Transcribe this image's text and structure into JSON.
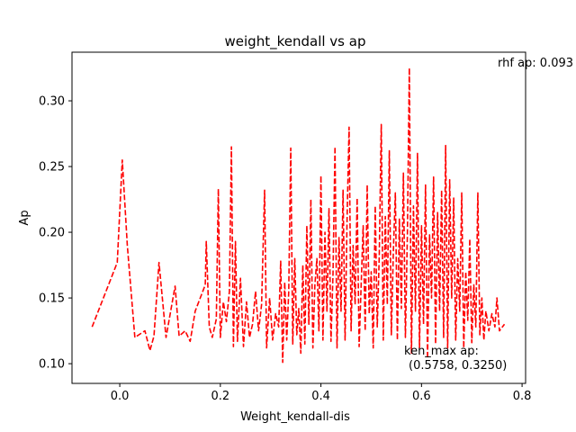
{
  "chart_data": {
    "type": "line",
    "title": "weight_kendall vs ap",
    "xlabel": "Weight_kendall-dis",
    "ylabel": "Ap",
    "xlim": [
      -0.095,
      0.807
    ],
    "ylim": [
      0.085,
      0.337
    ],
    "x_ticks": [
      0.0,
      0.2,
      0.4,
      0.6,
      0.8
    ],
    "x_tick_labels": [
      "0.0",
      "0.2",
      "0.4",
      "0.6",
      "0.8"
    ],
    "y_ticks": [
      0.1,
      0.15,
      0.2,
      0.25,
      0.3
    ],
    "y_tick_labels": [
      "0.10",
      "0.15",
      "0.20",
      "0.25",
      "0.30"
    ],
    "grid": false,
    "line_color": "#ff0000",
    "line_style": "dashed",
    "annotations": [
      {
        "text": "rhf ap: 0.093"
      },
      {
        "text": "ken_max ap:",
        "text2": "(0.5758, 0.3250)"
      }
    ],
    "series": [
      {
        "name": "",
        "points": [
          [
            -0.055,
            0.128
          ],
          [
            -0.005,
            0.177
          ],
          [
            0.005,
            0.255
          ],
          [
            0.015,
            0.19
          ],
          [
            0.03,
            0.12
          ],
          [
            0.05,
            0.125
          ],
          [
            0.06,
            0.11
          ],
          [
            0.068,
            0.121
          ],
          [
            0.078,
            0.177
          ],
          [
            0.092,
            0.12
          ],
          [
            0.11,
            0.159
          ],
          [
            0.118,
            0.121
          ],
          [
            0.13,
            0.125
          ],
          [
            0.14,
            0.117
          ],
          [
            0.15,
            0.14
          ],
          [
            0.17,
            0.16
          ],
          [
            0.172,
            0.193
          ],
          [
            0.178,
            0.128
          ],
          [
            0.184,
            0.12
          ],
          [
            0.192,
            0.134
          ],
          [
            0.196,
            0.233
          ],
          [
            0.2,
            0.12
          ],
          [
            0.206,
            0.147
          ],
          [
            0.212,
            0.132
          ],
          [
            0.218,
            0.155
          ],
          [
            0.222,
            0.265
          ],
          [
            0.226,
            0.113
          ],
          [
            0.23,
            0.193
          ],
          [
            0.234,
            0.117
          ],
          [
            0.24,
            0.165
          ],
          [
            0.246,
            0.113
          ],
          [
            0.252,
            0.147
          ],
          [
            0.258,
            0.12
          ],
          [
            0.264,
            0.13
          ],
          [
            0.27,
            0.155
          ],
          [
            0.276,
            0.125
          ],
          [
            0.282,
            0.145
          ],
          [
            0.288,
            0.232
          ],
          [
            0.292,
            0.112
          ],
          [
            0.298,
            0.15
          ],
          [
            0.304,
            0.118
          ],
          [
            0.31,
            0.138
          ],
          [
            0.316,
            0.128
          ],
          [
            0.32,
            0.178
          ],
          [
            0.324,
            0.101
          ],
          [
            0.328,
            0.162
          ],
          [
            0.332,
            0.118
          ],
          [
            0.336,
            0.155
          ],
          [
            0.34,
            0.264
          ],
          [
            0.344,
            0.115
          ],
          [
            0.348,
            0.18
          ],
          [
            0.352,
            0.122
          ],
          [
            0.356,
            0.142
          ],
          [
            0.36,
            0.108
          ],
          [
            0.364,
            0.175
          ],
          [
            0.368,
            0.115
          ],
          [
            0.372,
            0.205
          ],
          [
            0.376,
            0.13
          ],
          [
            0.38,
            0.225
          ],
          [
            0.384,
            0.112
          ],
          [
            0.388,
            0.16
          ],
          [
            0.392,
            0.18
          ],
          [
            0.396,
            0.125
          ],
          [
            0.4,
            0.243
          ],
          [
            0.404,
            0.118
          ],
          [
            0.408,
            0.2
          ],
          [
            0.412,
            0.14
          ],
          [
            0.416,
            0.218
          ],
          [
            0.42,
            0.117
          ],
          [
            0.424,
            0.168
          ],
          [
            0.428,
            0.265
          ],
          [
            0.432,
            0.112
          ],
          [
            0.436,
            0.196
          ],
          [
            0.44,
            0.14
          ],
          [
            0.444,
            0.232
          ],
          [
            0.448,
            0.118
          ],
          [
            0.452,
            0.21
          ],
          [
            0.456,
            0.28
          ],
          [
            0.46,
            0.125
          ],
          [
            0.464,
            0.19
          ],
          [
            0.468,
            0.145
          ],
          [
            0.472,
            0.226
          ],
          [
            0.476,
            0.113
          ],
          [
            0.48,
            0.16
          ],
          [
            0.484,
            0.205
          ],
          [
            0.488,
            0.125
          ],
          [
            0.492,
            0.236
          ],
          [
            0.496,
            0.138
          ],
          [
            0.5,
            0.17
          ],
          [
            0.504,
            0.112
          ],
          [
            0.508,
            0.22
          ],
          [
            0.512,
            0.128
          ],
          [
            0.516,
            0.182
          ],
          [
            0.52,
            0.282
          ],
          [
            0.524,
            0.118
          ],
          [
            0.528,
            0.212
          ],
          [
            0.532,
            0.145
          ],
          [
            0.536,
            0.262
          ],
          [
            0.54,
            0.122
          ],
          [
            0.544,
            0.185
          ],
          [
            0.548,
            0.23
          ],
          [
            0.552,
            0.118
          ],
          [
            0.556,
            0.21
          ],
          [
            0.56,
            0.142
          ],
          [
            0.564,
            0.245
          ],
          [
            0.568,
            0.12
          ],
          [
            0.572,
            0.2
          ],
          [
            0.5758,
            0.325
          ],
          [
            0.58,
            0.108
          ],
          [
            0.584,
            0.22
          ],
          [
            0.588,
            0.14
          ],
          [
            0.592,
            0.26
          ],
          [
            0.596,
            0.112
          ],
          [
            0.6,
            0.205
          ],
          [
            0.604,
            0.13
          ],
          [
            0.608,
            0.236
          ],
          [
            0.612,
            0.104
          ],
          [
            0.616,
            0.198
          ],
          [
            0.62,
            0.15
          ],
          [
            0.624,
            0.242
          ],
          [
            0.628,
            0.115
          ],
          [
            0.632,
            0.215
          ],
          [
            0.636,
            0.14
          ],
          [
            0.64,
            0.232
          ],
          [
            0.644,
            0.12
          ],
          [
            0.648,
            0.266
          ],
          [
            0.652,
            0.112
          ],
          [
            0.656,
            0.24
          ],
          [
            0.66,
            0.15
          ],
          [
            0.664,
            0.226
          ],
          [
            0.668,
            0.118
          ],
          [
            0.672,
            0.18
          ],
          [
            0.676,
            0.14
          ],
          [
            0.68,
            0.23
          ],
          [
            0.684,
            0.112
          ],
          [
            0.688,
            0.17
          ],
          [
            0.692,
            0.133
          ],
          [
            0.696,
            0.195
          ],
          [
            0.7,
            0.116
          ],
          [
            0.704,
            0.16
          ],
          [
            0.708,
            0.128
          ],
          [
            0.712,
            0.23
          ],
          [
            0.716,
            0.122
          ],
          [
            0.72,
            0.15
          ],
          [
            0.724,
            0.118
          ],
          [
            0.728,
            0.14
          ],
          [
            0.734,
            0.125
          ],
          [
            0.74,
            0.138
          ],
          [
            0.746,
            0.128
          ],
          [
            0.75,
            0.15
          ],
          [
            0.755,
            0.125
          ],
          [
            0.765,
            0.13
          ]
        ]
      }
    ]
  }
}
